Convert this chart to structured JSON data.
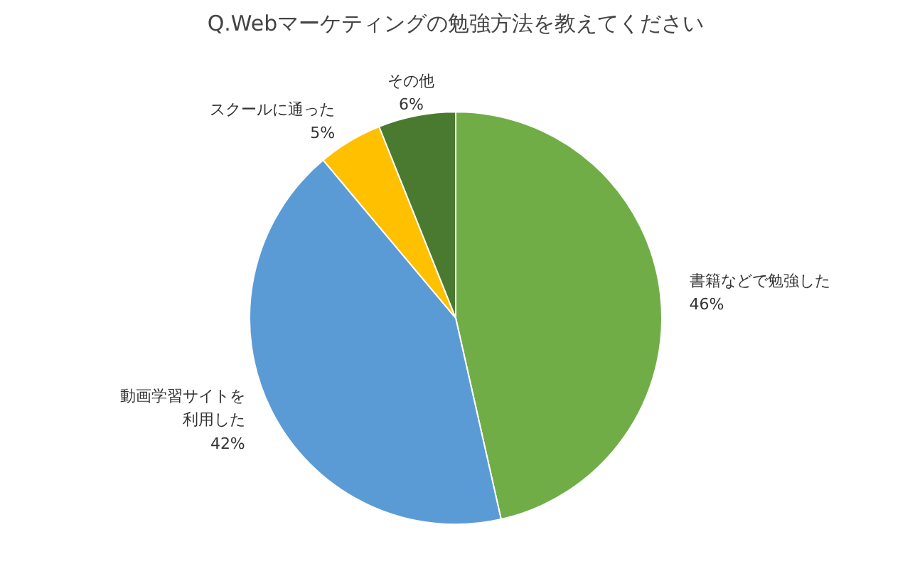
{
  "chart_data": {
    "type": "pie",
    "title": "Q.Webマーケティングの勉強方法を教えてください",
    "categories": [
      "書籍などで勉強した",
      "動画学習サイトを利用した",
      "スクールに通った",
      "その他"
    ],
    "values": [
      46,
      42,
      5,
      6
    ],
    "value_labels": [
      "46%",
      "42%",
      "5%",
      "6%"
    ],
    "colors": [
      "#70ad47",
      "#5b9bd5",
      "#ffc000",
      "#4a7a30"
    ],
    "legend": false
  }
}
